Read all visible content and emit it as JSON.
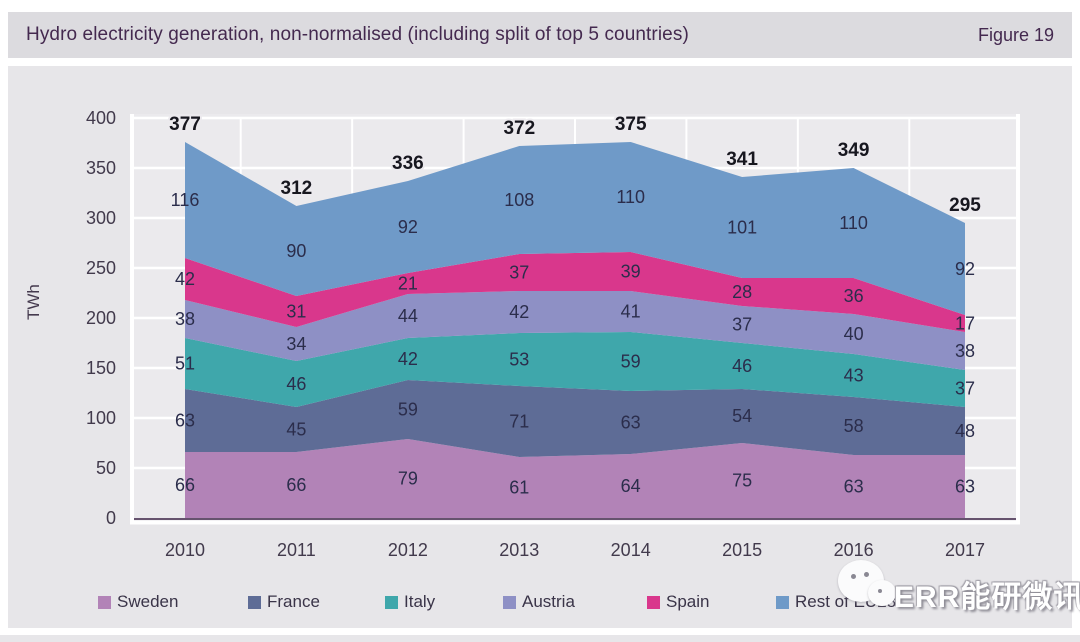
{
  "header": {
    "title": "Hydro electricity generation, non-normalised (including split of top 5 countries)",
    "figure_label": "Figure 19"
  },
  "y_axis": {
    "label": "TWh",
    "ticks": [
      0,
      50,
      100,
      150,
      200,
      250,
      300,
      350,
      400
    ]
  },
  "x_axis": {
    "years": [
      "2010",
      "2011",
      "2012",
      "2013",
      "2014",
      "2015",
      "2016",
      "2017"
    ]
  },
  "chart_data": {
    "type": "area",
    "stacked": true,
    "title": "Hydro electricity generation, non-normalised (including split of top 5 countries)",
    "xlabel": "",
    "ylabel": "TWh",
    "ylim": [
      0,
      400
    ],
    "grid": true,
    "legend_position": "bottom",
    "categories": [
      "2010",
      "2011",
      "2012",
      "2013",
      "2014",
      "2015",
      "2016",
      "2017"
    ],
    "series": [
      {
        "name": "Sweden",
        "color": "#b283b7",
        "values": [
          66,
          66,
          79,
          61,
          64,
          75,
          63,
          63
        ]
      },
      {
        "name": "France",
        "color": "#5e6c96",
        "values": [
          63,
          45,
          59,
          71,
          63,
          54,
          58,
          48
        ]
      },
      {
        "name": "Italy",
        "color": "#3fa7ab",
        "values": [
          51,
          46,
          42,
          53,
          59,
          46,
          43,
          37
        ]
      },
      {
        "name": "Austria",
        "color": "#8e90c5",
        "values": [
          38,
          34,
          44,
          42,
          41,
          37,
          40,
          38
        ]
      },
      {
        "name": "Spain",
        "color": "#d9378c",
        "values": [
          42,
          31,
          21,
          37,
          39,
          28,
          36,
          17
        ]
      },
      {
        "name": "Rest of EU28",
        "color": "#6f9ac8",
        "values": [
          116,
          90,
          92,
          108,
          110,
          101,
          110,
          92
        ]
      }
    ],
    "totals": [
      377,
      312,
      336,
      372,
      375,
      341,
      349,
      295
    ]
  },
  "colors": {
    "panel_bg": "#e7e6e9",
    "header_bg": "#dcdbdf",
    "plot_bg": "#ebeaed",
    "gridline": "#ffffff",
    "baseline": "#66536e",
    "value_label": "#2b2d4b",
    "total_label": "#17171f",
    "axis_text": "#423a4c"
  },
  "watermark": {
    "text": "ERR能研微讯"
  }
}
